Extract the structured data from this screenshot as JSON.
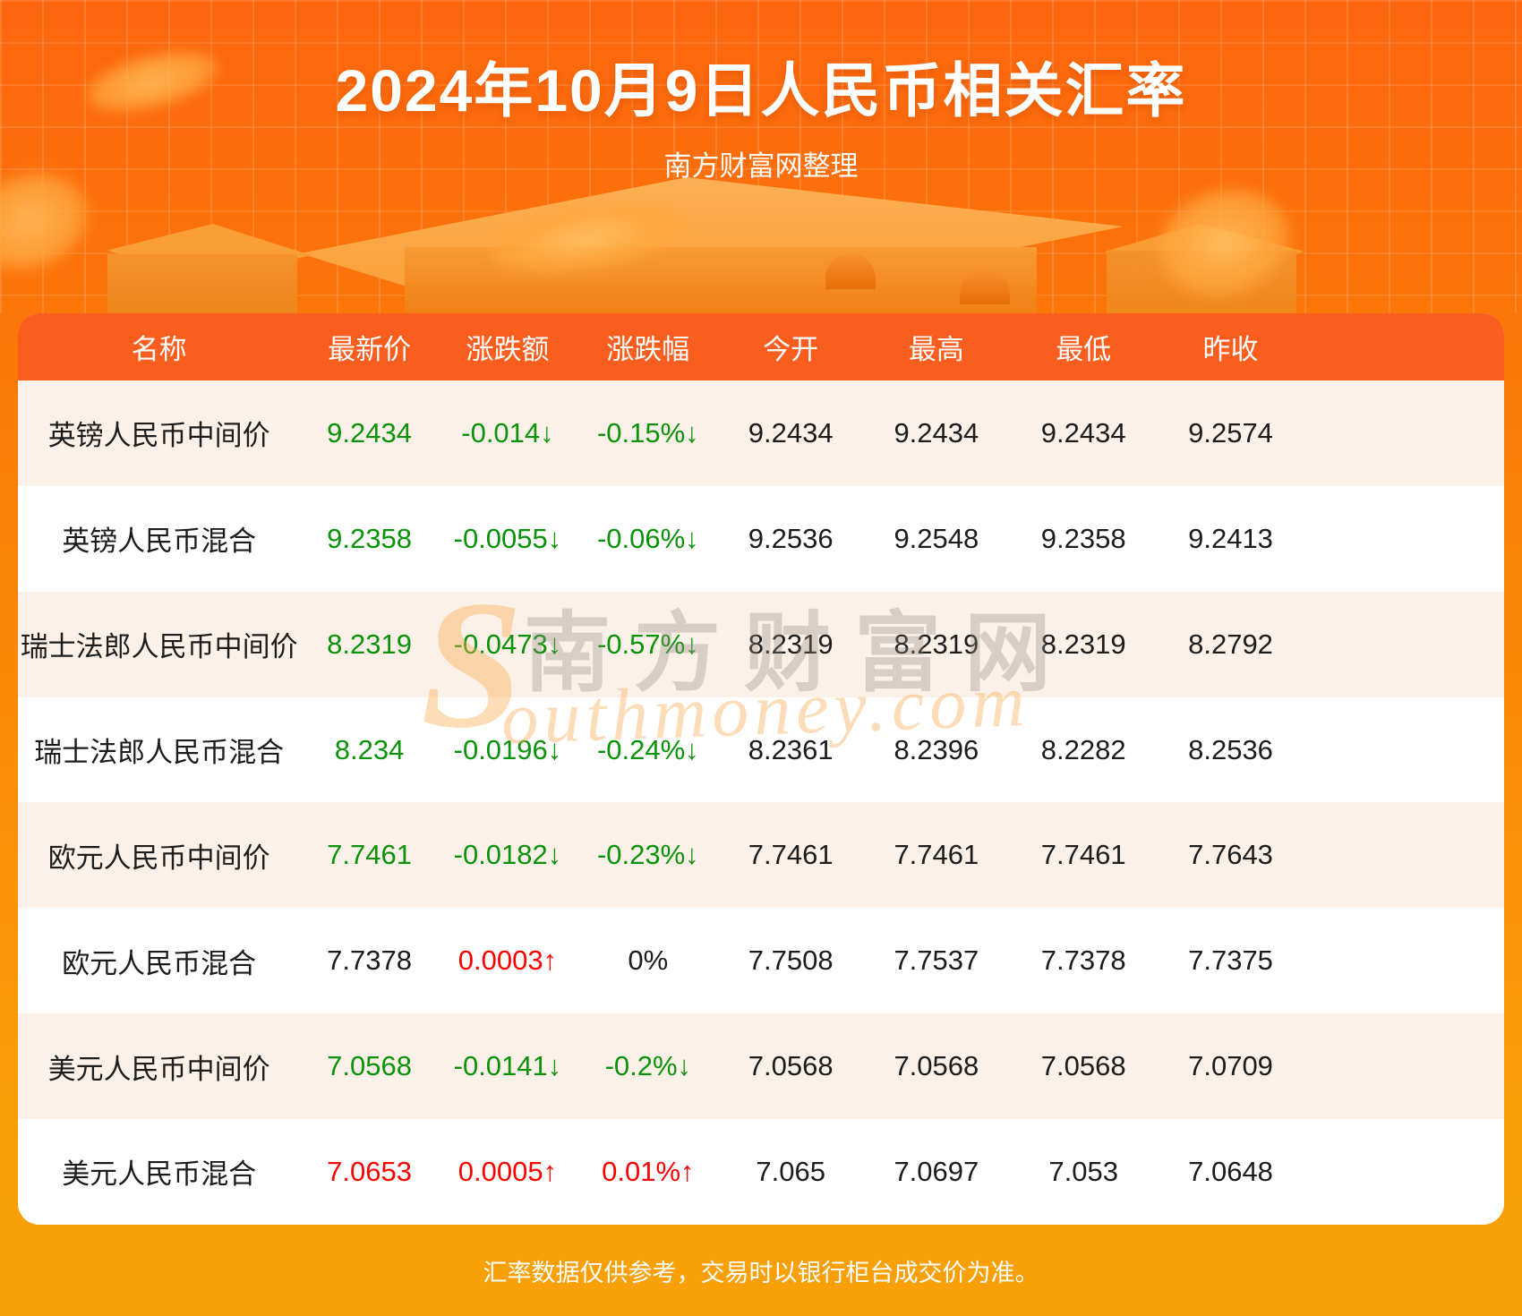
{
  "header": {
    "title": "2024年10月9日人民币相关汇率",
    "subtitle": "南方财富网整理"
  },
  "table": {
    "columns": [
      "名称",
      "最新价",
      "涨跌额",
      "涨跌幅",
      "今开",
      "最高",
      "最低",
      "昨收"
    ],
    "rows": [
      {
        "name": "英镑人民币中间价",
        "latest": {
          "text": "9.2434",
          "color": "green"
        },
        "change": {
          "text": "-0.014↓",
          "color": "green"
        },
        "change_pct": {
          "text": "-0.15%↓",
          "color": "green"
        },
        "open": "9.2434",
        "high": "9.2434",
        "low": "9.2434",
        "prev_close": "9.2574"
      },
      {
        "name": "英镑人民币混合",
        "latest": {
          "text": "9.2358",
          "color": "green"
        },
        "change": {
          "text": "-0.0055↓",
          "color": "green"
        },
        "change_pct": {
          "text": "-0.06%↓",
          "color": "green"
        },
        "open": "9.2536",
        "high": "9.2548",
        "low": "9.2358",
        "prev_close": "9.2413"
      },
      {
        "name": "瑞士法郎人民币中间价",
        "latest": {
          "text": "8.2319",
          "color": "green"
        },
        "change": {
          "text": "-0.0473↓",
          "color": "green"
        },
        "change_pct": {
          "text": "-0.57%↓",
          "color": "green"
        },
        "open": "8.2319",
        "high": "8.2319",
        "low": "8.2319",
        "prev_close": "8.2792"
      },
      {
        "name": "瑞士法郎人民币混合",
        "latest": {
          "text": "8.234",
          "color": "green"
        },
        "change": {
          "text": "-0.0196↓",
          "color": "green"
        },
        "change_pct": {
          "text": "-0.24%↓",
          "color": "green"
        },
        "open": "8.2361",
        "high": "8.2396",
        "low": "8.2282",
        "prev_close": "8.2536"
      },
      {
        "name": "欧元人民币中间价",
        "latest": {
          "text": "7.7461",
          "color": "green"
        },
        "change": {
          "text": "-0.0182↓",
          "color": "green"
        },
        "change_pct": {
          "text": "-0.23%↓",
          "color": "green"
        },
        "open": "7.7461",
        "high": "7.7461",
        "low": "7.7461",
        "prev_close": "7.7643"
      },
      {
        "name": "欧元人民币混合",
        "latest": {
          "text": "7.7378",
          "color": "black"
        },
        "change": {
          "text": "0.0003↑",
          "color": "red"
        },
        "change_pct": {
          "text": "0%",
          "color": "black"
        },
        "open": "7.7508",
        "high": "7.7537",
        "low": "7.7378",
        "prev_close": "7.7375"
      },
      {
        "name": "美元人民币中间价",
        "latest": {
          "text": "7.0568",
          "color": "green"
        },
        "change": {
          "text": "-0.0141↓",
          "color": "green"
        },
        "change_pct": {
          "text": "-0.2%↓",
          "color": "green"
        },
        "open": "7.0568",
        "high": "7.0568",
        "low": "7.0568",
        "prev_close": "7.0709"
      },
      {
        "name": "美元人民币混合",
        "latest": {
          "text": "7.0653",
          "color": "red"
        },
        "change": {
          "text": "0.0005↑",
          "color": "red"
        },
        "change_pct": {
          "text": "0.01%↑",
          "color": "red"
        },
        "open": "7.065",
        "high": "7.0697",
        "low": "7.053",
        "prev_close": "7.0648"
      }
    ]
  },
  "watermark": {
    "s": "S",
    "cn": "南方财富网",
    "en": "outhmoney.com"
  },
  "footer": {
    "disclaimer": "汇率数据仅供参考，交易时以银行柜台成交价为准。"
  },
  "colors": {
    "green": "#0A930A",
    "red": "#FC0000",
    "black": "#1C1C1C",
    "header_bg": "#FA5E1E",
    "row_alt_bg": "#FCF1E8",
    "footer_bg": "#F9A008"
  },
  "chart_data": {
    "type": "table",
    "title": "2024年10月9日人民币相关汇率",
    "subtitle": "南方财富网整理",
    "columns": [
      "名称",
      "最新价",
      "涨跌额",
      "涨跌幅",
      "今开",
      "最高",
      "最低",
      "昨收"
    ],
    "rows": [
      [
        "英镑人民币中间价",
        "9.2434",
        "-0.014↓",
        "-0.15%↓",
        "9.2434",
        "9.2434",
        "9.2434",
        "9.2574"
      ],
      [
        "英镑人民币混合",
        "9.2358",
        "-0.0055↓",
        "-0.06%↓",
        "9.2536",
        "9.2548",
        "9.2358",
        "9.2413"
      ],
      [
        "瑞士法郎人民币中间价",
        "8.2319",
        "-0.0473↓",
        "-0.57%↓",
        "8.2319",
        "8.2319",
        "8.2319",
        "8.2792"
      ],
      [
        "瑞士法郎人民币混合",
        "8.234",
        "-0.0196↓",
        "-0.24%↓",
        "8.2361",
        "8.2396",
        "8.2282",
        "8.2536"
      ],
      [
        "欧元人民币中间价",
        "7.7461",
        "-0.0182↓",
        "-0.23%↓",
        "7.7461",
        "7.7461",
        "7.7461",
        "7.7643"
      ],
      [
        "欧元人民币混合",
        "7.7378",
        "0.0003↑",
        "0%",
        "7.7508",
        "7.7537",
        "7.7378",
        "7.7375"
      ],
      [
        "美元人民币中间价",
        "7.0568",
        "-0.0141↓",
        "-0.2%↓",
        "7.0568",
        "7.0568",
        "7.0568",
        "7.0709"
      ],
      [
        "美元人民币混合",
        "7.0653",
        "0.0005↑",
        "0.01%↑",
        "7.065",
        "7.0697",
        "7.053",
        "7.0648"
      ]
    ],
    "note": "汇率数据仅供参考，交易时以银行柜台成交价为准。"
  }
}
